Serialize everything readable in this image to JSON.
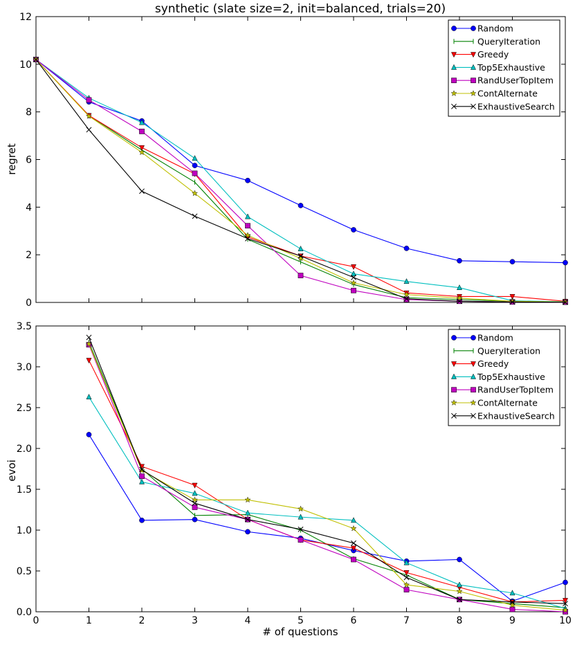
{
  "chart_data": [
    {
      "type": "line",
      "title": "synthetic (slate size=2, init=balanced, trials=20)",
      "xlabel": "",
      "ylabel": "regret",
      "xlim": [
        0,
        10
      ],
      "ylim": [
        0,
        12
      ],
      "xticks": [
        "0",
        "1",
        "2",
        "3",
        "4",
        "5",
        "6",
        "7",
        "8",
        "9",
        "10"
      ],
      "yticks": [
        "0",
        "2",
        "4",
        "6",
        "8",
        "10",
        "12"
      ],
      "legend": "top-right",
      "x": [
        0,
        1,
        2,
        3,
        4,
        5,
        6,
        7,
        8,
        9,
        10
      ],
      "series": [
        {
          "name": "Random",
          "color": "#0000ff",
          "marker": "circle",
          "values": [
            10.2,
            8.42,
            7.62,
            5.75,
            5.12,
            4.07,
            3.05,
            2.27,
            1.75,
            1.71,
            1.67
          ]
        },
        {
          "name": "QueryIteration",
          "color": "#008000",
          "marker": "tickbar",
          "values": [
            10.2,
            7.85,
            6.4,
            5.05,
            2.65,
            1.7,
            0.75,
            0.2,
            0.12,
            0.05,
            0.02
          ]
        },
        {
          "name": "Greedy",
          "color": "#ff0000",
          "marker": "triangle-down",
          "values": [
            10.2,
            7.85,
            6.5,
            5.4,
            2.75,
            1.95,
            1.5,
            0.4,
            0.25,
            0.25,
            0.05
          ]
        },
        {
          "name": "Top5Exhaustive",
          "color": "#00bfbf",
          "marker": "triangle-up",
          "values": [
            10.2,
            8.58,
            7.55,
            6.05,
            3.6,
            2.25,
            1.2,
            0.88,
            0.62,
            0.07,
            0.03
          ]
        },
        {
          "name": "RandUserTopItem",
          "color": "#bf00bf",
          "marker": "square",
          "values": [
            10.2,
            8.5,
            7.18,
            5.42,
            3.22,
            1.13,
            0.5,
            0.12,
            0.05,
            0.02,
            0.01
          ]
        },
        {
          "name": "ContAlternate",
          "color": "#bfbf00",
          "marker": "star",
          "values": [
            10.2,
            7.82,
            6.3,
            4.58,
            2.82,
            1.85,
            0.82,
            0.33,
            0.18,
            0.05,
            0.02
          ]
        },
        {
          "name": "ExhaustiveSearch",
          "color": "#000000",
          "marker": "x",
          "values": [
            10.2,
            7.25,
            4.67,
            3.62,
            2.68,
            1.95,
            1.05,
            0.15,
            0.05,
            0.02,
            0.01
          ]
        }
      ]
    },
    {
      "type": "line",
      "title": "",
      "xlabel": "# of questions",
      "ylabel": "evoi",
      "xlim": [
        0,
        10
      ],
      "ylim": [
        0,
        3.5
      ],
      "xticks": [
        "0",
        "1",
        "2",
        "3",
        "4",
        "5",
        "6",
        "7",
        "8",
        "9",
        "10"
      ],
      "yticks": [
        "0.0",
        "0.5",
        "1.0",
        "1.5",
        "2.0",
        "2.5",
        "3.0",
        "3.5"
      ],
      "legend": "top-right",
      "x": [
        1,
        2,
        3,
        4,
        5,
        6,
        7,
        8,
        9,
        10
      ],
      "series": [
        {
          "name": "Random",
          "color": "#0000ff",
          "marker": "circle",
          "values": [
            2.17,
            1.12,
            1.13,
            0.98,
            0.9,
            0.75,
            0.62,
            0.64,
            0.13,
            0.36
          ]
        },
        {
          "name": "QueryIteration",
          "color": "#008000",
          "marker": "tickbar",
          "values": [
            3.3,
            1.75,
            1.18,
            1.19,
            1.0,
            0.65,
            0.45,
            0.15,
            0.1,
            0.05
          ]
        },
        {
          "name": "Greedy",
          "color": "#ff0000",
          "marker": "triangle-down",
          "values": [
            3.08,
            1.78,
            1.55,
            1.13,
            0.88,
            0.78,
            0.48,
            0.3,
            0.12,
            0.14
          ]
        },
        {
          "name": "Top5Exhaustive",
          "color": "#00bfbf",
          "marker": "triangle-up",
          "values": [
            2.63,
            1.59,
            1.45,
            1.21,
            1.16,
            1.12,
            0.6,
            0.33,
            0.23,
            0.04
          ]
        },
        {
          "name": "RandUserTopItem",
          "color": "#bf00bf",
          "marker": "square",
          "values": [
            3.27,
            1.66,
            1.28,
            1.13,
            0.88,
            0.64,
            0.27,
            0.15,
            0.03,
            0.0
          ]
        },
        {
          "name": "ContAlternate",
          "color": "#bfbf00",
          "marker": "star",
          "values": [
            3.28,
            1.73,
            1.37,
            1.37,
            1.26,
            1.02,
            0.33,
            0.25,
            0.08,
            0.02
          ]
        },
        {
          "name": "ExhaustiveSearch",
          "color": "#000000",
          "marker": "x",
          "values": [
            3.36,
            1.74,
            1.33,
            1.13,
            1.01,
            0.84,
            0.42,
            0.15,
            0.12,
            0.1
          ]
        }
      ]
    }
  ]
}
